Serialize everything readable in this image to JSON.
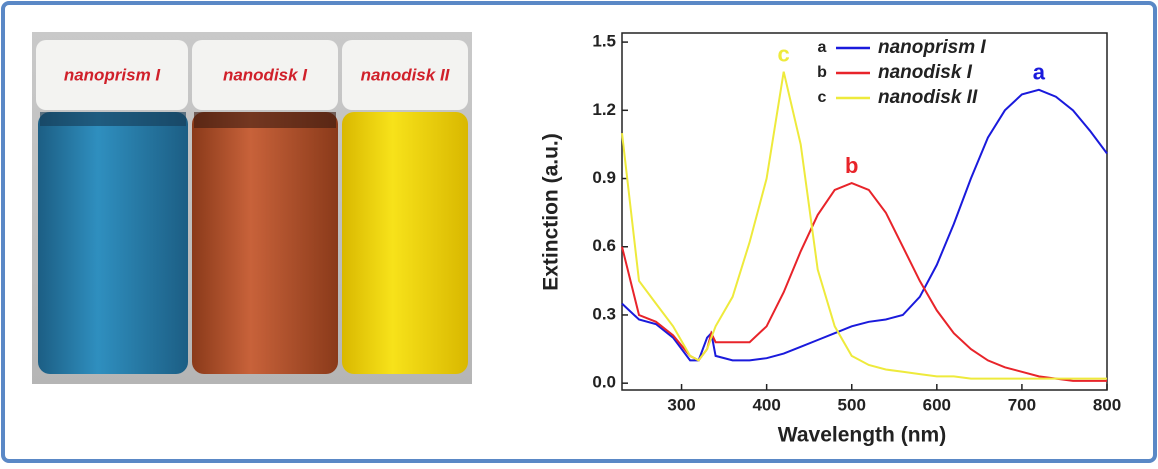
{
  "photo": {
    "labels": [
      "nanoprism I",
      "nanodisk I",
      "nanodisk II"
    ]
  },
  "chart_data": {
    "type": "line",
    "xlabel": "Wavelength (nm)",
    "ylabel": "Extinction (a.u.)",
    "x": [
      230,
      250,
      270,
      290,
      310,
      320,
      330,
      335,
      340,
      360,
      380,
      400,
      420,
      440,
      460,
      480,
      500,
      520,
      540,
      560,
      580,
      600,
      620,
      640,
      660,
      680,
      700,
      720,
      740,
      760,
      780,
      800
    ],
    "series": [
      {
        "letter": "a",
        "name": "nanoprism I",
        "color": "#1a1adc",
        "values": [
          0.35,
          0.28,
          0.26,
          0.2,
          0.1,
          0.1,
          0.2,
          0.22,
          0.12,
          0.1,
          0.1,
          0.11,
          0.13,
          0.16,
          0.19,
          0.22,
          0.25,
          0.27,
          0.28,
          0.3,
          0.38,
          0.52,
          0.7,
          0.9,
          1.08,
          1.2,
          1.27,
          1.29,
          1.26,
          1.2,
          1.11,
          1.01
        ]
      },
      {
        "letter": "b",
        "name": "nanodisk I",
        "color": "#e8242a",
        "values": [
          0.6,
          0.3,
          0.27,
          0.21,
          0.12,
          0.1,
          0.15,
          0.22,
          0.18,
          0.18,
          0.18,
          0.25,
          0.4,
          0.58,
          0.74,
          0.85,
          0.88,
          0.85,
          0.75,
          0.6,
          0.45,
          0.32,
          0.22,
          0.15,
          0.1,
          0.07,
          0.05,
          0.03,
          0.02,
          0.01,
          0.01,
          0.01
        ]
      },
      {
        "letter": "c",
        "name": "nanodisk II",
        "color": "#eeea3c",
        "values": [
          1.1,
          0.45,
          0.35,
          0.25,
          0.12,
          0.1,
          0.15,
          0.2,
          0.25,
          0.38,
          0.62,
          0.9,
          1.37,
          1.05,
          0.5,
          0.25,
          0.12,
          0.08,
          0.06,
          0.05,
          0.04,
          0.03,
          0.03,
          0.02,
          0.02,
          0.02,
          0.02,
          0.02,
          0.02,
          0.02,
          0.02,
          0.02
        ]
      }
    ],
    "xlim": [
      230,
      800
    ],
    "xticks": [
      300,
      400,
      500,
      600,
      700,
      800
    ],
    "ylim": [
      -0.03,
      1.54
    ],
    "yticks": [
      {
        "value": 0,
        "label": "0.0"
      },
      0.3,
      0.6,
      0.9,
      1.2,
      1.5
    ]
  }
}
